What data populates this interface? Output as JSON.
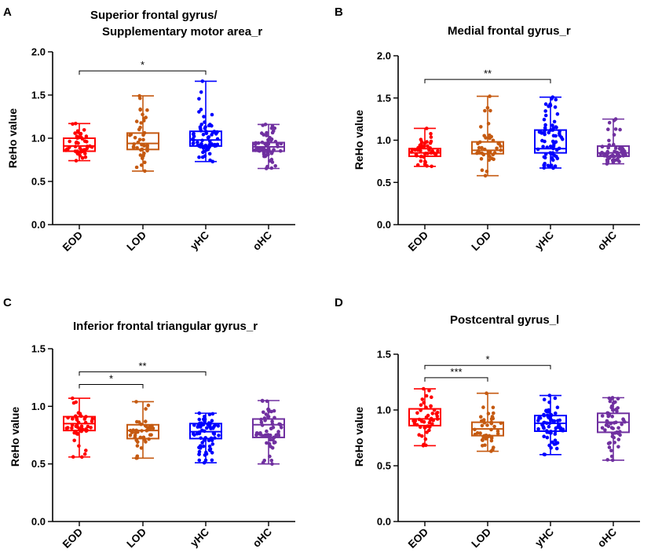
{
  "colors": {
    "EOD": "#ff0000",
    "LOD": "#c55a11",
    "yHC": "#0000ff",
    "oHC": "#7030a0"
  },
  "chart_data": [
    {
      "panel": "A",
      "type": "boxplot",
      "title": [
        "Superior frontal gyrus/",
        "Supplementary motor area_r"
      ],
      "ylabel": "ReHo value",
      "ylim": [
        0,
        2.0
      ],
      "yticks": [
        "0.0",
        "0.5",
        "1.0",
        "1.5",
        "2.0"
      ],
      "tick_values": [
        0,
        0.5,
        1.0,
        1.5,
        2.0
      ],
      "categories": [
        "EOD",
        "LOD",
        "yHC",
        "oHC"
      ],
      "boxes": [
        {
          "min": 0.74,
          "q1": 0.85,
          "median": 0.91,
          "q3": 1.0,
          "max": 1.17
        },
        {
          "min": 0.62,
          "q1": 0.87,
          "median": 0.94,
          "q3": 1.06,
          "max": 1.49
        },
        {
          "min": 0.73,
          "q1": 0.91,
          "median": 0.98,
          "q3": 1.08,
          "max": 1.66
        },
        {
          "min": 0.65,
          "q1": 0.85,
          "median": 0.9,
          "q3": 0.95,
          "max": 1.16
        }
      ],
      "n_points": [
        45,
        42,
        70,
        60
      ],
      "significance": [
        {
          "from": 0,
          "to": 2,
          "level": 1.78,
          "label": "*"
        }
      ]
    },
    {
      "panel": "B",
      "type": "boxplot",
      "title": [
        "Medial frontal gyrus_r"
      ],
      "ylabel": "ReHo value",
      "ylim": [
        0,
        2.0
      ],
      "yticks": [
        "0.0",
        "0.5",
        "1.0",
        "1.5",
        "2.0"
      ],
      "tick_values": [
        0,
        0.5,
        1.0,
        1.5,
        2.0
      ],
      "categories": [
        "EOD",
        "LOD",
        "yHC",
        "oHC"
      ],
      "boxes": [
        {
          "min": 0.69,
          "q1": 0.81,
          "median": 0.85,
          "q3": 0.9,
          "max": 1.14
        },
        {
          "min": 0.58,
          "q1": 0.84,
          "median": 0.88,
          "q3": 0.98,
          "max": 1.52
        },
        {
          "min": 0.67,
          "q1": 0.85,
          "median": 0.9,
          "q3": 1.12,
          "max": 1.51
        },
        {
          "min": 0.72,
          "q1": 0.81,
          "median": 0.85,
          "q3": 0.93,
          "max": 1.25
        }
      ],
      "n_points": [
        45,
        42,
        70,
        60
      ],
      "significance": [
        {
          "from": 0,
          "to": 2,
          "level": 1.72,
          "label": "**"
        }
      ]
    },
    {
      "panel": "C",
      "type": "boxplot",
      "title": [
        "Inferior frontal triangular gyrus_r"
      ],
      "ylabel": "ReHo value",
      "ylim": [
        0,
        1.5
      ],
      "yticks": [
        "0.0",
        "0.5",
        "1.0",
        "1.5"
      ],
      "tick_values": [
        0,
        0.5,
        1.0,
        1.5
      ],
      "categories": [
        "EOD",
        "LOD",
        "yHC",
        "oHC"
      ],
      "boxes": [
        {
          "min": 0.56,
          "q1": 0.79,
          "median": 0.85,
          "q3": 0.91,
          "max": 1.07
        },
        {
          "min": 0.55,
          "q1": 0.72,
          "median": 0.79,
          "q3": 0.84,
          "max": 1.04
        },
        {
          "min": 0.51,
          "q1": 0.72,
          "median": 0.78,
          "q3": 0.85,
          "max": 0.94
        },
        {
          "min": 0.5,
          "q1": 0.73,
          "median": 0.84,
          "q3": 0.89,
          "max": 1.05
        }
      ],
      "n_points": [
        45,
        42,
        70,
        60
      ],
      "significance": [
        {
          "from": 0,
          "to": 1,
          "level": 1.19,
          "label": "*"
        },
        {
          "from": 0,
          "to": 2,
          "level": 1.3,
          "label": "**"
        }
      ]
    },
    {
      "panel": "D",
      "type": "boxplot",
      "title": [
        "Postcentral gyrus_l"
      ],
      "ylabel": "ReHo value",
      "ylim": [
        0,
        1.5
      ],
      "yticks": [
        "0.0",
        "0.5",
        "1.0",
        "1.5"
      ],
      "tick_values": [
        0,
        0.5,
        1.0,
        1.5
      ],
      "categories": [
        "EOD",
        "LOD",
        "yHC",
        "oHC"
      ],
      "boxes": [
        {
          "min": 0.68,
          "q1": 0.86,
          "median": 0.92,
          "q3": 1.01,
          "max": 1.19
        },
        {
          "min": 0.63,
          "q1": 0.77,
          "median": 0.83,
          "q3": 0.89,
          "max": 1.15
        },
        {
          "min": 0.6,
          "q1": 0.81,
          "median": 0.88,
          "q3": 0.95,
          "max": 1.13
        },
        {
          "min": 0.55,
          "q1": 0.8,
          "median": 0.89,
          "q3": 0.97,
          "max": 1.11
        }
      ],
      "n_points": [
        45,
        42,
        70,
        60
      ],
      "significance": [
        {
          "from": 0,
          "to": 1,
          "level": 1.29,
          "label": "***"
        },
        {
          "from": 0,
          "to": 2,
          "level": 1.4,
          "label": "*"
        }
      ]
    }
  ]
}
